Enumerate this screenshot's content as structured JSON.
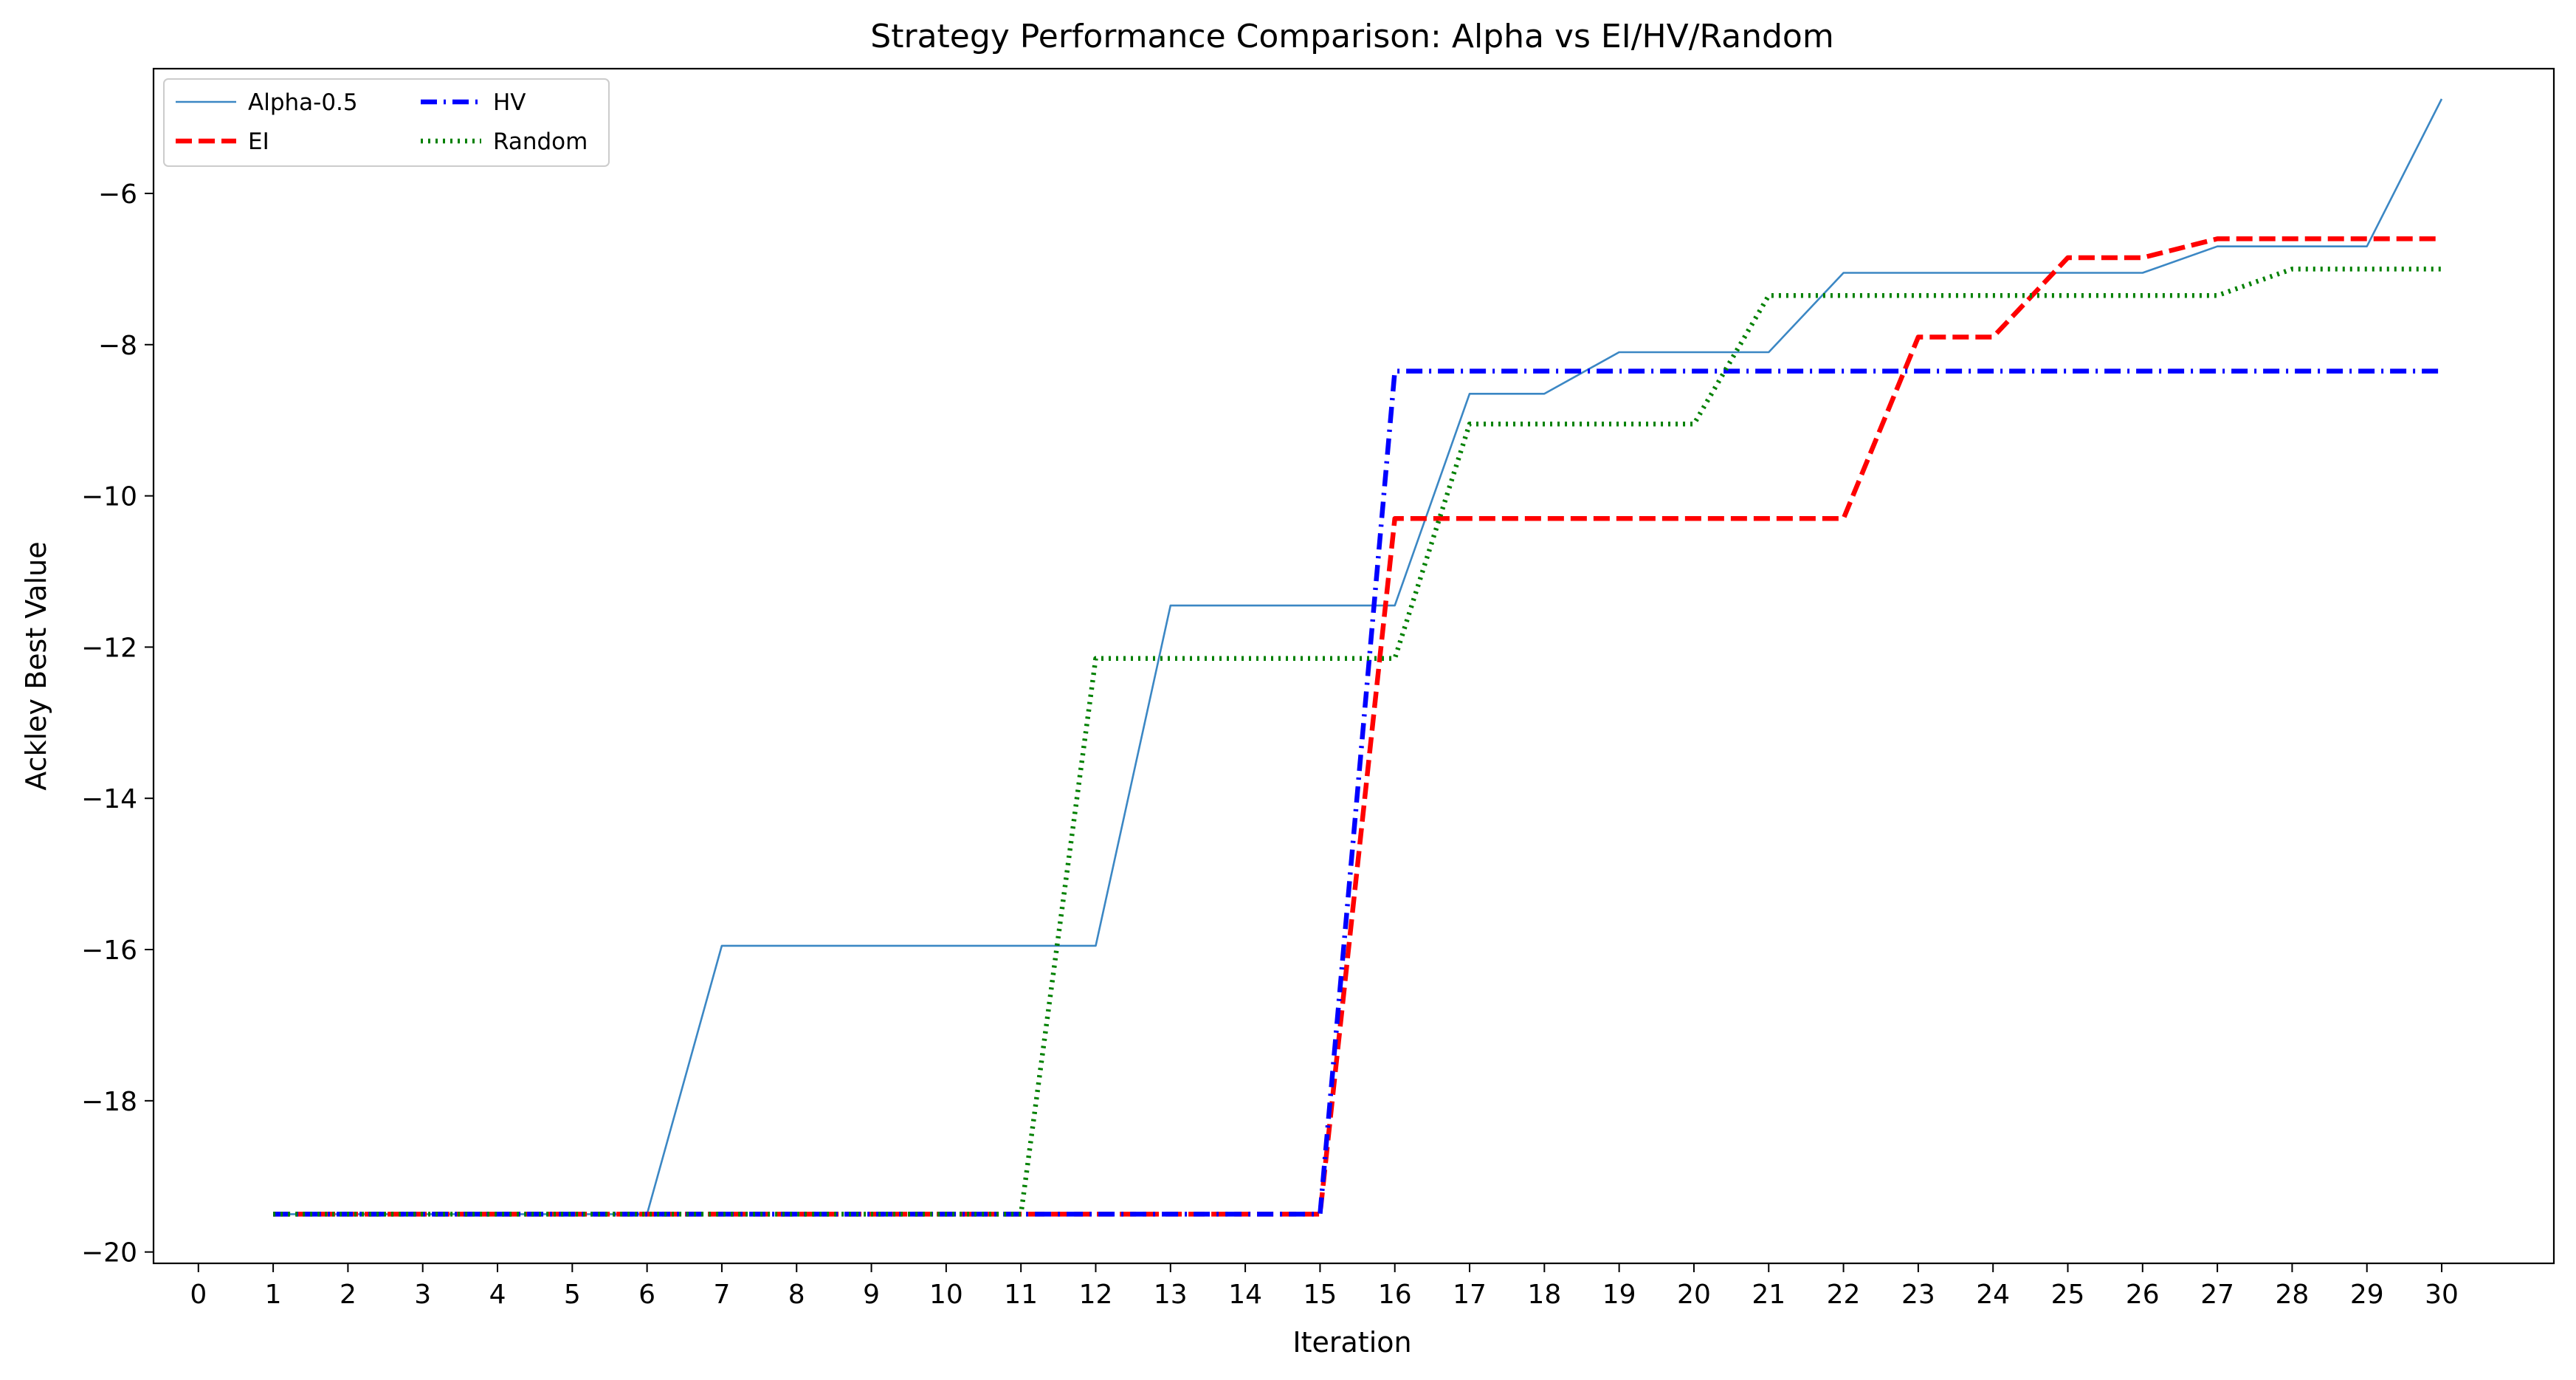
{
  "chart_data": {
    "type": "line",
    "title": "Strategy Performance Comparison: Alpha vs EI/HV/Random",
    "xlabel": "Iteration",
    "ylabel": "Ackley Best Value",
    "xlim": [
      -0.6,
      31.5
    ],
    "ylim": [
      -20.15,
      -4.35
    ],
    "xticks": [
      0,
      1,
      2,
      3,
      4,
      5,
      6,
      7,
      8,
      9,
      10,
      11,
      12,
      13,
      14,
      15,
      16,
      17,
      18,
      19,
      20,
      21,
      22,
      23,
      24,
      25,
      26,
      27,
      28,
      29,
      30
    ],
    "yticks": [
      -20,
      -18,
      -16,
      -14,
      -12,
      -10,
      -8,
      -6
    ],
    "ytick_labels": [
      "−20",
      "−18",
      "−16",
      "−14",
      "−12",
      "−10",
      "−8",
      "−6"
    ],
    "grid": false,
    "legend_position": "upper-left",
    "x": [
      1,
      2,
      3,
      4,
      5,
      6,
      7,
      8,
      9,
      10,
      11,
      12,
      13,
      14,
      15,
      16,
      17,
      18,
      19,
      20,
      21,
      22,
      23,
      24,
      25,
      26,
      27,
      28,
      29,
      30
    ],
    "series": [
      {
        "name": "Alpha-0.5",
        "color": "#3b87c4",
        "style": "solid",
        "width": "thin",
        "values": [
          -19.5,
          -19.5,
          -19.5,
          -19.5,
          -19.5,
          -19.5,
          -15.95,
          -15.95,
          -15.95,
          -15.95,
          -15.95,
          -15.95,
          -11.45,
          -11.45,
          -11.45,
          -11.45,
          -8.65,
          -8.65,
          -8.1,
          -8.1,
          -8.1,
          -7.05,
          -7.05,
          -7.05,
          -7.05,
          -7.05,
          -6.7,
          -6.7,
          -6.7,
          -4.75
        ]
      },
      {
        "name": "EI",
        "color": "#ff0000",
        "style": "dashed",
        "width": "thick",
        "values": [
          -19.5,
          -19.5,
          -19.5,
          -19.5,
          -19.5,
          -19.5,
          -19.5,
          -19.5,
          -19.5,
          -19.5,
          -19.5,
          -19.5,
          -19.5,
          -19.5,
          -19.5,
          -10.3,
          -10.3,
          -10.3,
          -10.3,
          -10.3,
          -10.3,
          -10.3,
          -7.9,
          -7.9,
          -6.85,
          -6.85,
          -6.6,
          -6.6,
          -6.6,
          -6.6
        ]
      },
      {
        "name": "HV",
        "color": "#0000ff",
        "style": "dashdot",
        "width": "thick",
        "values": [
          -19.5,
          -19.5,
          -19.5,
          -19.5,
          -19.5,
          -19.5,
          -19.5,
          -19.5,
          -19.5,
          -19.5,
          -19.5,
          -19.5,
          -19.5,
          -19.5,
          -19.5,
          -8.35,
          -8.35,
          -8.35,
          -8.35,
          -8.35,
          -8.35,
          -8.35,
          -8.35,
          -8.35,
          -8.35,
          -8.35,
          -8.35,
          -8.35,
          -8.35,
          -8.35
        ]
      },
      {
        "name": "Random",
        "color": "#008000",
        "style": "dotted",
        "width": "thick",
        "values": [
          -19.5,
          -19.5,
          -19.5,
          -19.5,
          -19.5,
          -19.5,
          -19.5,
          -19.5,
          -19.5,
          -19.5,
          -19.5,
          -12.15,
          -12.15,
          -12.15,
          -12.15,
          -12.15,
          -9.05,
          -9.05,
          -9.05,
          -9.05,
          -7.35,
          -7.35,
          -7.35,
          -7.35,
          -7.35,
          -7.35,
          -7.35,
          -7.0,
          -7.0,
          -7.0
        ]
      }
    ]
  }
}
